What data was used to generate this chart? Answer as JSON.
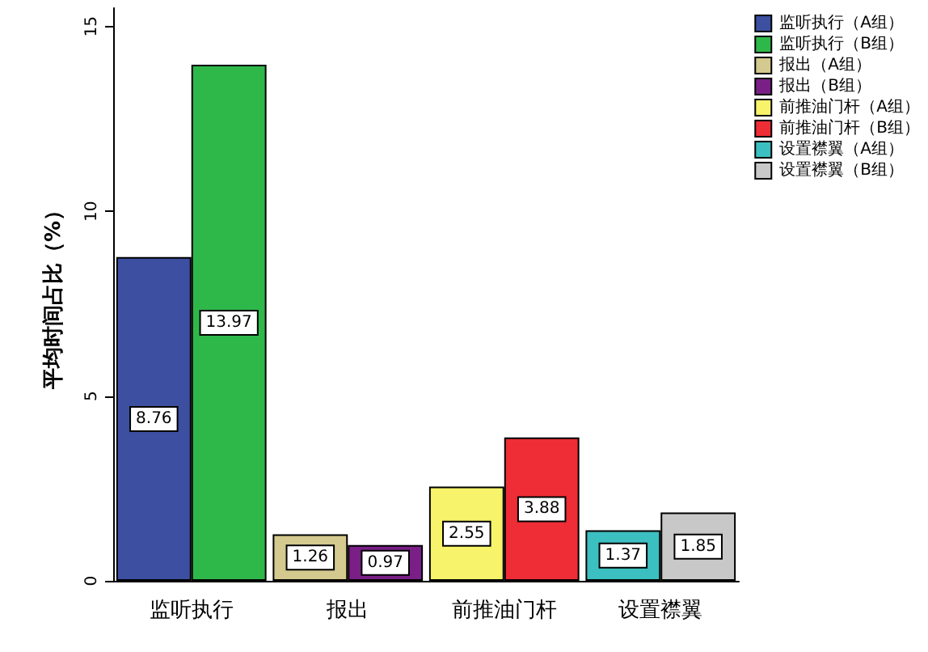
{
  "chart_data": {
    "type": "bar",
    "ylabel": "平均时间占比（%）",
    "categories": [
      "监听执行",
      "报出",
      "前推油门杆",
      "设置襟翼"
    ],
    "series": [
      {
        "name": "监听执行（A组）",
        "color": "#3c4fa0",
        "values": [
          8.76,
          null,
          null,
          null
        ]
      },
      {
        "name": "监听执行（B组）",
        "color": "#2fb84a",
        "values": [
          13.97,
          null,
          null,
          null
        ]
      },
      {
        "name": "报出（A组）",
        "color": "#d4c98e",
        "values": [
          null,
          1.26,
          null,
          null
        ]
      },
      {
        "name": "报出（B组）",
        "color": "#7a1f86",
        "values": [
          null,
          0.97,
          null,
          null
        ]
      },
      {
        "name": "前推油门杆（A组）",
        "color": "#f7f36a",
        "values": [
          null,
          null,
          2.55,
          null
        ]
      },
      {
        "name": "前推油门杆（B组）",
        "color": "#ee2d36",
        "values": [
          null,
          null,
          3.88,
          null
        ]
      },
      {
        "name": "设置襟翼（A组）",
        "color": "#3cbfc0",
        "values": [
          null,
          null,
          null,
          1.37
        ]
      },
      {
        "name": "设置襟翼（B组）",
        "color": "#c8c8c8",
        "values": [
          null,
          null,
          null,
          1.85
        ]
      }
    ],
    "ylim": [
      0,
      15.5
    ],
    "yticks": [
      0,
      5,
      10,
      15
    ],
    "grid": false,
    "legend": "top right",
    "data_labels": true
  }
}
